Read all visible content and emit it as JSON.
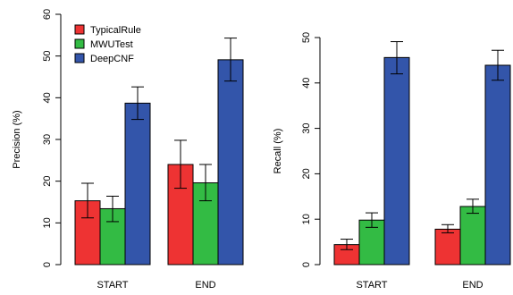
{
  "chart_data": [
    {
      "type": "bar",
      "ylabel": "Precision (%)",
      "ylim": [
        0,
        60
      ],
      "yticks": [
        0,
        10,
        20,
        30,
        40,
        50,
        60
      ],
      "categories": [
        "START",
        "END"
      ],
      "series": [
        {
          "name": "TypicalRule",
          "color": "#ee3333",
          "values": [
            15.3,
            24.0
          ],
          "err_low": [
            11.2,
            18.3
          ],
          "err_high": [
            19.5,
            29.8
          ]
        },
        {
          "name": "MWUTest",
          "color": "#33bb44",
          "values": [
            13.4,
            19.6
          ],
          "err_low": [
            10.3,
            15.3
          ],
          "err_high": [
            16.4,
            24.0
          ]
        },
        {
          "name": "DeepCNF",
          "color": "#3355aa",
          "values": [
            38.7,
            49.1
          ],
          "err_low": [
            34.8,
            44.0
          ],
          "err_high": [
            42.6,
            54.3
          ]
        }
      ],
      "legend": {
        "position": "top-left"
      },
      "grid": false
    },
    {
      "type": "bar",
      "ylabel": "Recall (%)",
      "ylim": [
        0,
        50
      ],
      "yticks": [
        0,
        10,
        20,
        30,
        40,
        50
      ],
      "categories": [
        "START",
        "END"
      ],
      "series": [
        {
          "name": "TypicalRule",
          "color": "#ee3333",
          "values": [
            4.4,
            7.8
          ],
          "err_low": [
            3.3,
            7.0
          ],
          "err_high": [
            5.6,
            8.8
          ]
        },
        {
          "name": "MWUTest",
          "color": "#33bb44",
          "values": [
            9.8,
            12.8
          ],
          "err_low": [
            8.2,
            11.3
          ],
          "err_high": [
            11.4,
            14.4
          ]
        },
        {
          "name": "DeepCNF",
          "color": "#3355aa",
          "values": [
            45.6,
            43.9
          ],
          "err_low": [
            42.0,
            40.6
          ],
          "err_high": [
            49.1,
            47.2
          ]
        }
      ],
      "grid": false
    }
  ]
}
